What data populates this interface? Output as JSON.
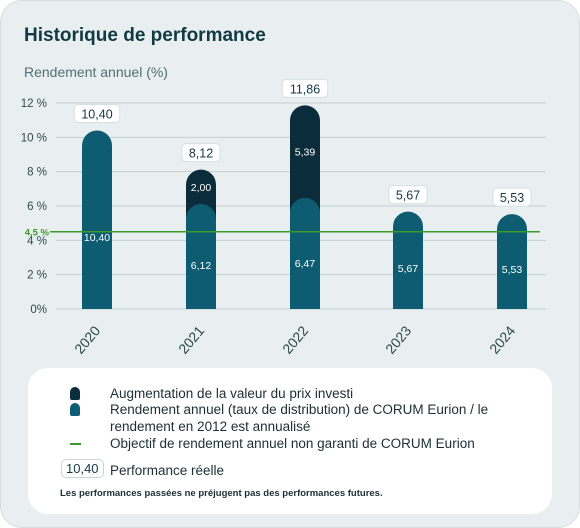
{
  "header": {
    "title": "Historique de performance",
    "ylabel": "Rendement annuel (%)"
  },
  "colors": {
    "bar_base": "#0e5c72",
    "bar_top": "#0b2c3a",
    "objective_line": "#3a9a2a"
  },
  "chart_data": {
    "type": "bar",
    "stacked": true,
    "categories": [
      "2020",
      "2021",
      "2022",
      "2023",
      "2024"
    ],
    "series": [
      {
        "name": "Rendement annuel (taux de distribution) de CORUM Eurion / le rendement en 2012 est annualisé",
        "values": [
          10.4,
          6.12,
          6.47,
          5.67,
          5.53
        ],
        "labels": [
          "10,40",
          "6,12",
          "6,47",
          "5,67",
          "5,53"
        ]
      },
      {
        "name": "Augmentation de la valeur du prix investi",
        "values": [
          0,
          2.0,
          5.39,
          0,
          0
        ],
        "labels": [
          "",
          "2,00",
          "5,39",
          "",
          ""
        ]
      }
    ],
    "totals": [
      10.4,
      8.12,
      11.86,
      5.67,
      5.53
    ],
    "total_labels": [
      "10,40",
      "8,12",
      "11,86",
      "5,67",
      "5,53"
    ],
    "yticks": [
      0,
      2,
      4,
      6,
      8,
      10,
      12
    ],
    "ytick_labels": [
      "0%",
      "2 %",
      "4 %",
      "6 %",
      "8 %",
      "10 %",
      "12 %"
    ],
    "ylim": [
      0,
      12
    ],
    "objective": {
      "value": 4.5,
      "label": "4,5 %"
    },
    "ylabel": "Rendement annuel (%)",
    "grid": true
  },
  "legend": {
    "items": [
      {
        "label": "Augmentation de la valeur du prix investi"
      },
      {
        "label": "Rendement annuel (taux de distribution) de CORUM Eurion / le rendement en 2012 est annualisé"
      },
      {
        "label": "Objectif de rendement annuel non garanti de CORUM Eurion"
      }
    ],
    "perf_box": "10,40",
    "perf_label": "Performance réelle",
    "note": "Les performances passées ne préjugent pas des performances futures."
  }
}
